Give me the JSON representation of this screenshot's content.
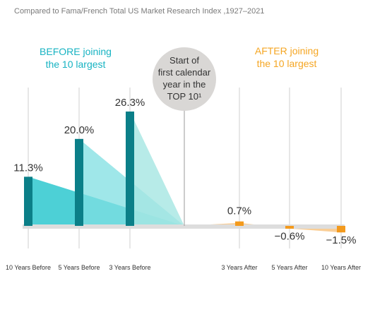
{
  "subtitle": "Compared to Fama/French Total US Market Research Index ,1927–2021",
  "groups": {
    "before": [
      "BEFORE joining",
      "the 10 largest"
    ],
    "after": [
      "AFTER joining",
      "the 10 largest"
    ]
  },
  "center_label": [
    "Start of",
    "first calendar",
    "year in the",
    "TOP 10¹"
  ],
  "colors": {
    "before_bar": "#0b7f88",
    "before_fill_1": "#2ec8cf",
    "before_fill_2": "#7fdfe2",
    "before_fill_3": "#a5e6e2",
    "after_bar": "#f39a1d",
    "after_fill": "#f8be73",
    "baseline": "#dddddd",
    "guide": "#cfcfcf",
    "center_circle": "#d9d7d5"
  },
  "chart_data": {
    "type": "bar",
    "title": "",
    "categories": [
      "10 Years Before",
      "5 Years Before",
      "3 Years Before",
      "3 Years After",
      "5 Years After",
      "10 Years After"
    ],
    "values": [
      11.3,
      20.0,
      26.3,
      0.7,
      -0.6,
      -1.5
    ],
    "value_labels": [
      "11.3%",
      "20.0%",
      "26.3%",
      "0.7%",
      "−0.6%",
      "−1.5%"
    ],
    "periods": [
      "before",
      "before",
      "before",
      "after",
      "after",
      "after"
    ],
    "ylim": [
      -1.5,
      26.3
    ]
  }
}
